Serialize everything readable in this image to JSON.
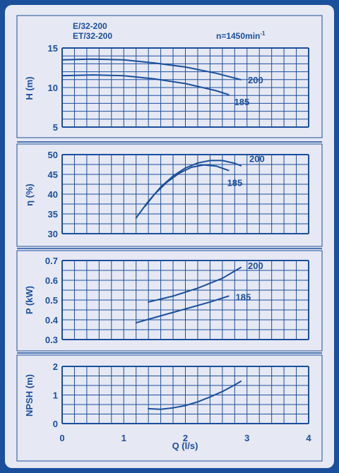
{
  "header": {
    "model_line1": "E/32-200",
    "model_line2": "ET/32-200",
    "speed_prefix": "n=1450min",
    "speed_exp": "-1"
  },
  "colors": {
    "frame": "#1a4f9c",
    "panel": "#e6e8f3",
    "grid": "#1a4f9c",
    "curve": "#1a4f9c"
  },
  "chart_data": [
    {
      "type": "line",
      "ylabel": "H (m)",
      "xlim": [
        0,
        4
      ],
      "ylim": [
        5,
        15
      ],
      "yticks": [
        5,
        10,
        15
      ],
      "series": [
        {
          "name": "200",
          "x": [
            0,
            0.5,
            1.0,
            1.5,
            2.0,
            2.5,
            2.9
          ],
          "y": [
            13.5,
            13.6,
            13.5,
            13.1,
            12.6,
            11.8,
            11.0
          ]
        },
        {
          "name": "185",
          "x": [
            0,
            0.5,
            1.0,
            1.5,
            2.0,
            2.5,
            2.7
          ],
          "y": [
            11.5,
            11.6,
            11.5,
            11.1,
            10.5,
            9.6,
            9.1
          ]
        }
      ]
    },
    {
      "type": "line",
      "ylabel": "η (%)",
      "xlim": [
        0,
        4
      ],
      "ylim": [
        30,
        50
      ],
      "yticks": [
        30,
        35,
        40,
        45,
        50
      ],
      "series": [
        {
          "name": "200",
          "x": [
            1.2,
            1.4,
            1.6,
            1.8,
            2.0,
            2.2,
            2.4,
            2.6,
            2.8,
            2.9
          ],
          "y": [
            34.0,
            38.2,
            41.8,
            44.6,
            46.6,
            47.9,
            48.5,
            48.5,
            47.8,
            47.2
          ]
        },
        {
          "name": "185",
          "x": [
            1.35,
            1.5,
            1.7,
            1.9,
            2.1,
            2.3,
            2.5,
            2.7
          ],
          "y": [
            37.0,
            40.0,
            43.0,
            45.3,
            46.8,
            47.4,
            47.1,
            46.0
          ]
        }
      ]
    },
    {
      "type": "line",
      "ylabel": "P (kW)",
      "xlim": [
        0,
        4
      ],
      "ylim": [
        0.3,
        0.7
      ],
      "yticks": [
        0.3,
        0.4,
        0.5,
        0.6,
        0.7
      ],
      "series": [
        {
          "name": "200",
          "x": [
            1.4,
            1.8,
            2.2,
            2.6,
            2.9
          ],
          "y": [
            0.49,
            0.52,
            0.56,
            0.61,
            0.665
          ]
        },
        {
          "name": "185",
          "x": [
            1.2,
            1.6,
            2.0,
            2.4,
            2.7
          ],
          "y": [
            0.385,
            0.42,
            0.455,
            0.49,
            0.52
          ]
        }
      ]
    },
    {
      "type": "line",
      "ylabel": "NPSH (m)",
      "xlabel": "Q (l/s)",
      "xlim": [
        0,
        4
      ],
      "ylim": [
        0,
        2
      ],
      "xticks": [
        0,
        1,
        2,
        3,
        4
      ],
      "yticks": [
        0,
        1,
        2
      ],
      "series": [
        {
          "name": "",
          "x": [
            1.4,
            1.6,
            1.8,
            2.0,
            2.2,
            2.4,
            2.6,
            2.8,
            2.9
          ],
          "y": [
            0.52,
            0.5,
            0.55,
            0.63,
            0.76,
            0.93,
            1.12,
            1.35,
            1.48
          ]
        }
      ]
    }
  ]
}
